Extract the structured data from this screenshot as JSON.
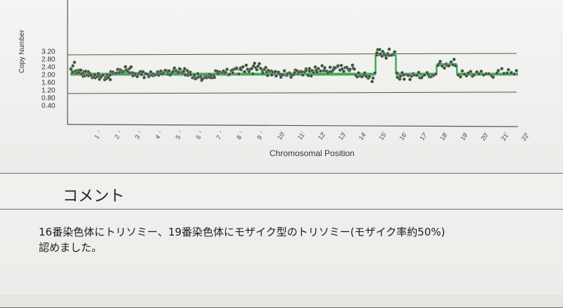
{
  "page": {
    "background": "#f2f2f0",
    "grid_color": "#2e7a3c",
    "median_color": "#3cab4f",
    "point_color": "#3d4a3f"
  },
  "chart_data": {
    "type": "scatter",
    "ylabel": "Copy Number",
    "xlabel": "Chromosomal Position",
    "y_ticks": [
      "3.20",
      "2.80",
      "2.40",
      "2.00",
      "1.60",
      "1.20",
      "0.80",
      "0.40"
    ],
    "ylim": [
      0.0,
      3.3
    ],
    "reference_lines": [
      3.0,
      1.0
    ],
    "x_categories": [
      "1",
      "2",
      "3",
      "4",
      "5",
      "6",
      "7",
      "8",
      "9",
      "10",
      "11",
      "12",
      "13",
      "14",
      "15",
      "16",
      "17",
      "18",
      "19",
      "20",
      "21",
      "22"
    ],
    "segments": [
      {
        "chrom": "1",
        "start": 0.0,
        "end": 1.0,
        "median": 2.0,
        "points": [
          2.3,
          2.2,
          2.1,
          2.5,
          2.6,
          2.2,
          2.1,
          2.0,
          2.1,
          2.2,
          2.0,
          2.1,
          2.2,
          2.0,
          1.9,
          2.1,
          2.0,
          2.1,
          1.9,
          2.0,
          2.1,
          2.0,
          2.1
        ]
      },
      {
        "chrom": "2",
        "start": 1.0,
        "end": 2.0,
        "median": 2.0,
        "points": [
          1.9,
          1.8,
          1.9,
          1.8,
          1.9,
          1.8,
          1.9,
          2.0,
          1.9,
          1.8,
          1.9,
          1.8,
          1.9,
          2.0,
          1.8,
          1.9,
          1.8,
          1.9,
          1.9,
          1.8,
          2.0,
          1.8
        ]
      },
      {
        "chrom": "3",
        "start": 2.0,
        "end": 3.0,
        "median": 2.0,
        "points": [
          2.1,
          2.0,
          2.2,
          2.1,
          2.0,
          2.1,
          2.2,
          2.0,
          2.1,
          2.3,
          2.2,
          2.1,
          2.0,
          2.2,
          2.1,
          2.3,
          2.2,
          2.2,
          2.1,
          2.0,
          2.2,
          2.3
        ]
      },
      {
        "chrom": "4",
        "start": 3.0,
        "end": 4.0,
        "median": 2.0,
        "points": [
          2.0,
          1.9,
          2.1,
          2.0,
          2.1,
          1.9,
          2.0,
          2.1,
          2.0,
          2.1,
          2.0,
          2.1,
          1.9,
          2.0,
          2.1,
          2.0,
          1.9,
          2.0,
          2.1,
          2.0
        ]
      },
      {
        "chrom": "5",
        "start": 4.0,
        "end": 5.0,
        "median": 2.0,
        "points": [
          2.0,
          2.1,
          2.0,
          1.9,
          2.0,
          2.1,
          2.0,
          2.1,
          2.2,
          2.0,
          2.1,
          2.0,
          2.1,
          2.2,
          2.1,
          2.0,
          2.1,
          2.2,
          2.0,
          2.1
        ]
      },
      {
        "chrom": "6",
        "start": 5.0,
        "end": 6.0,
        "median": 2.0,
        "points": [
          2.1,
          2.2,
          2.3,
          2.2,
          2.1,
          2.0,
          2.1,
          2.2,
          2.3,
          2.1,
          2.0,
          2.1,
          2.2,
          2.0,
          2.1,
          1.9,
          2.0,
          2.1,
          2.0,
          1.9
        ]
      },
      {
        "chrom": "7",
        "start": 6.0,
        "end": 7.0,
        "median": 2.0,
        "points": [
          1.9,
          1.8,
          1.9,
          1.8,
          1.9,
          2.0,
          1.8,
          1.9,
          1.8,
          1.7,
          1.8,
          1.9,
          1.8,
          1.9,
          1.8,
          1.9,
          2.0,
          1.8,
          1.9,
          1.9
        ]
      },
      {
        "chrom": "8",
        "start": 7.0,
        "end": 8.0,
        "median": 2.0,
        "points": [
          2.0,
          1.9,
          2.1,
          2.0,
          2.1,
          2.0,
          2.2,
          2.1,
          2.0,
          2.1,
          2.0,
          2.1,
          2.2,
          2.0,
          1.9,
          2.0,
          2.1,
          2.0
        ]
      },
      {
        "chrom": "9",
        "start": 8.0,
        "end": 9.0,
        "median": 2.0,
        "points": [
          2.2,
          2.3,
          2.4,
          2.2,
          2.1,
          2.3,
          2.4,
          2.2,
          2.3,
          2.1,
          2.2,
          2.4,
          2.3,
          2.2,
          2.1,
          2.2,
          2.3,
          2.1
        ]
      },
      {
        "chrom": "10",
        "start": 9.0,
        "end": 10.0,
        "median": 2.0,
        "points": [
          2.4,
          2.5,
          2.3,
          2.2,
          2.4,
          2.6,
          2.3,
          2.2,
          2.1,
          2.2,
          2.3,
          2.1,
          2.0,
          2.2,
          2.1,
          2.2,
          2.0,
          2.1
        ]
      },
      {
        "chrom": "11",
        "start": 10.0,
        "end": 11.0,
        "median": 2.0,
        "points": [
          2.0,
          2.1,
          1.9,
          2.0,
          2.1,
          2.0,
          1.9,
          2.0,
          2.1,
          2.0,
          1.9,
          2.0,
          2.1,
          2.0,
          1.9,
          2.0,
          2.0
        ]
      },
      {
        "chrom": "12",
        "start": 11.0,
        "end": 12.0,
        "median": 2.0,
        "points": [
          2.1,
          2.2,
          2.1,
          2.0,
          2.2,
          2.1,
          2.2,
          2.0,
          2.1,
          2.2,
          2.1,
          2.0,
          2.2,
          2.1,
          2.0,
          2.1,
          2.1
        ]
      },
      {
        "chrom": "13",
        "start": 12.0,
        "end": 13.0,
        "median": 2.0,
        "points": [
          2.3,
          2.2,
          2.1,
          2.3,
          2.2,
          2.4,
          2.2,
          2.1,
          2.3,
          2.2,
          2.1,
          2.2,
          2.3,
          2.1,
          2.2,
          2.3
        ]
      },
      {
        "chrom": "14",
        "start": 13.0,
        "end": 14.0,
        "median": 2.0,
        "points": [
          2.4,
          2.3,
          2.4,
          2.3,
          2.4,
          2.3,
          2.2,
          2.3,
          2.4,
          2.3,
          2.2,
          2.3,
          2.4,
          2.3,
          2.2
        ]
      },
      {
        "chrom": "15",
        "start": 14.0,
        "end": 15.0,
        "median": 2.0,
        "points": [
          1.9,
          1.8,
          2.0,
          1.9,
          1.8,
          1.9,
          2.0,
          1.9,
          1.8,
          1.9,
          1.7,
          1.8,
          2.0
        ]
      },
      {
        "chrom": "16",
        "start": 15.0,
        "end": 16.0,
        "median": 3.0,
        "points": [
          3.0,
          3.1,
          3.2,
          3.3,
          3.1,
          3.0,
          3.2,
          3.1,
          3.0,
          2.9,
          3.1,
          3.2,
          3.0,
          3.1,
          2.9,
          3.0,
          3.2,
          3.1
        ]
      },
      {
        "chrom": "17",
        "start": 16.0,
        "end": 17.0,
        "median": 2.0,
        "points": [
          2.0,
          1.9,
          1.8,
          1.9,
          2.0,
          1.9,
          1.8,
          1.9,
          2.0,
          1.9,
          1.8,
          1.9,
          2.0,
          1.9,
          1.9
        ]
      },
      {
        "chrom": "18",
        "start": 17.0,
        "end": 18.0,
        "median": 2.0,
        "points": [
          1.9,
          2.0,
          1.9,
          1.8,
          2.0,
          1.9,
          2.0,
          1.9,
          1.8,
          1.9,
          2.0,
          1.9,
          2.0
        ]
      },
      {
        "chrom": "19",
        "start": 18.0,
        "end": 19.0,
        "median": 2.5,
        "points": [
          2.5,
          2.6,
          2.7,
          2.5,
          2.4,
          2.6,
          2.5,
          2.4,
          2.6,
          2.5,
          2.7,
          2.4
        ]
      },
      {
        "chrom": "20",
        "start": 19.0,
        "end": 20.0,
        "median": 2.0,
        "points": [
          2.0,
          1.9,
          2.1,
          2.0,
          1.9,
          2.0,
          2.1,
          1.9,
          2.0,
          2.1
        ]
      },
      {
        "chrom": "21",
        "start": 20.0,
        "end": 21.0,
        "median": 2.0,
        "points": [
          2.0,
          2.1,
          1.9,
          2.0,
          2.1,
          2.0,
          1.9,
          2.0
        ]
      },
      {
        "chrom": "22",
        "start": 21.0,
        "end": 22.0,
        "median": 2.0,
        "points": [
          2.1,
          2.2,
          2.0,
          2.1,
          2.2,
          2.1,
          2.0,
          2.1
        ]
      }
    ]
  },
  "comment": {
    "title": "コメント",
    "line1": "16番染色体にトリソミー、19番染色体にモザイク型のトリソミー(モザイク率約50%)",
    "line2": "認めました。"
  }
}
